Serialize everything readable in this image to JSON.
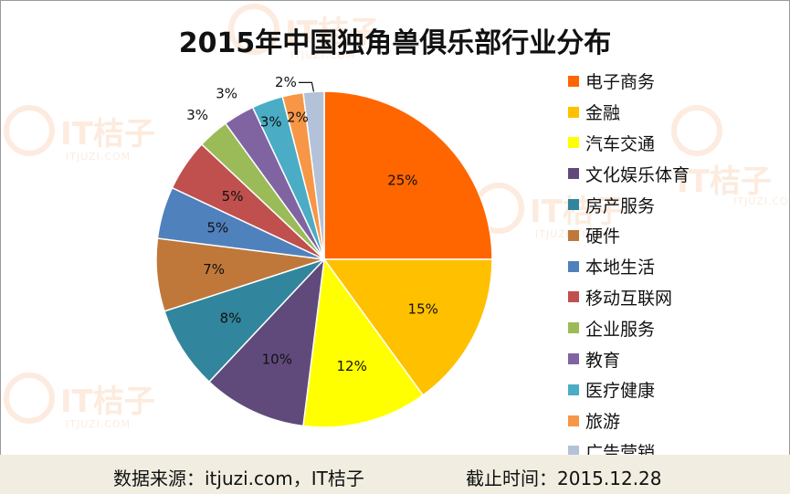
{
  "watermark": {
    "brand": "IT桔子",
    "domain": "ITJUZI.COM"
  },
  "colors": {
    "background": "#ffffff",
    "footer_bg": "#f1ede1",
    "accent": "#f08a3a"
  },
  "footer": {
    "source": "数据来源：itjuzi.com，IT桔子",
    "date": "截止时间：2015.12.28"
  },
  "chart_data": {
    "type": "pie",
    "title": "2015年中国独角兽俱乐部行业分布",
    "legend_position": "right",
    "start_angle_deg": 0,
    "direction": "clockwise",
    "slices": [
      {
        "label": "电子商务",
        "value": 25,
        "display": "25%",
        "color": "#ff6600"
      },
      {
        "label": "金融",
        "value": 15,
        "display": "15%",
        "color": "#ffc000"
      },
      {
        "label": "汽车交通",
        "value": 12,
        "display": "12%",
        "color": "#ffff00"
      },
      {
        "label": "文化娱乐体育",
        "value": 10,
        "display": "10%",
        "color": "#604a7b"
      },
      {
        "label": "房产服务",
        "value": 8,
        "display": "8%",
        "color": "#31859c"
      },
      {
        "label": "硬件",
        "value": 7,
        "display": "7%",
        "color": "#c0783a"
      },
      {
        "label": "本地生活",
        "value": 5,
        "display": "5%",
        "color": "#4f81bd"
      },
      {
        "label": "移动互联网",
        "value": 5,
        "display": "5%",
        "color": "#c0504d"
      },
      {
        "label": "企业服务",
        "value": 3,
        "display": "3%",
        "color": "#9bbb59"
      },
      {
        "label": "教育",
        "value": 3,
        "display": "3%",
        "color": "#8064a2"
      },
      {
        "label": "医疗健康",
        "value": 3,
        "display": "3%",
        "color": "#4bacc6"
      },
      {
        "label": "旅游",
        "value": 2,
        "display": "2%",
        "color": "#f79646"
      },
      {
        "label": "广告营销",
        "value": 2,
        "display": "2%",
        "color": "#b3c2d9"
      }
    ]
  }
}
